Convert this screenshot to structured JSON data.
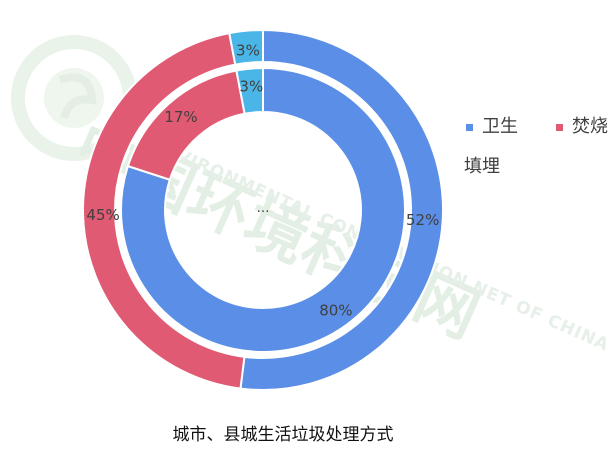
{
  "chart_data": {
    "type": "donut",
    "title": "城市、县城生活垃圾处理方式",
    "center_label": "…",
    "legend": [
      {
        "label": "卫生填埋",
        "color": "#5b8ee6"
      },
      {
        "label": "焚烧",
        "color": "#e05a73"
      }
    ],
    "rings": [
      {
        "name": "",
        "slices": [
          {
            "category": "卫生填埋",
            "value": 52,
            "label": "52%",
            "color": "#5b8ee6"
          },
          {
            "category": "焚烧",
            "value": 45,
            "label": "45%",
            "color": "#e05a73"
          },
          {
            "category": "",
            "value": 3,
            "label": "3%",
            "color": "#4ab6e8"
          }
        ]
      },
      {
        "name": "",
        "slices": [
          {
            "category": "卫生填埋",
            "value": 80,
            "label": "80%",
            "color": "#5b8ee6"
          },
          {
            "category": "焚烧",
            "value": 17,
            "label": "17%",
            "color": "#e05a73"
          },
          {
            "category": "",
            "value": 3,
            "label": "3%",
            "color": "#4ab6e8"
          }
        ]
      }
    ]
  },
  "watermark": {
    "main": "中国环境科技网",
    "sub": "ENVIRONMENTAL CONSERVATION NET OF CHINA"
  }
}
